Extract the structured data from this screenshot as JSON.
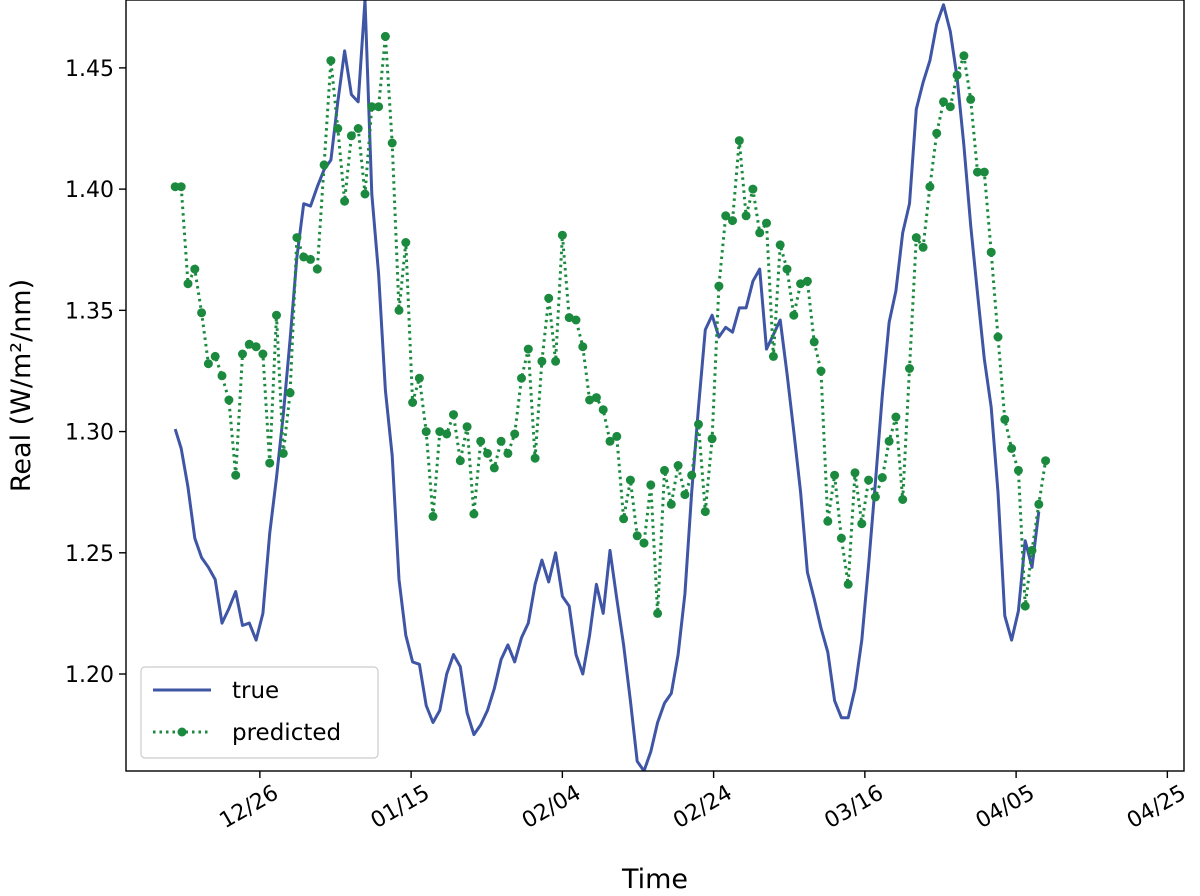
{
  "chart_data": {
    "type": "line",
    "xlabel": "Time",
    "ylabel": "Real (W/m²/nm)",
    "x_tick_labels": [
      "12/26",
      "01/15",
      "02/04",
      "02/24",
      "03/16",
      "04/05",
      "04/25"
    ],
    "x_tick_days": [
      0,
      20,
      40,
      60,
      80,
      100,
      120
    ],
    "x_range_days": [
      -17.7,
      122.2
    ],
    "y_ticks": [
      1.2,
      1.25,
      1.3,
      1.35,
      1.4,
      1.45
    ],
    "y_tick_labels": [
      "1.20",
      "1.25",
      "1.30",
      "1.35",
      "1.40",
      "1.45"
    ],
    "ylim": [
      1.16,
      1.478
    ],
    "grid": false,
    "legend_position": "lower-left",
    "colors": {
      "true": "#3f55a5",
      "predicted": "#1b8a3f"
    },
    "series": [
      {
        "name": "true",
        "style": "solid",
        "points": [
          [
            -11.2,
            1.301
          ],
          [
            -10.4,
            1.293
          ],
          [
            -9.5,
            1.277
          ],
          [
            -8.6,
            1.256
          ],
          [
            -7.7,
            1.248
          ],
          [
            -6.8,
            1.244
          ],
          [
            -5.9,
            1.239
          ],
          [
            -5.0,
            1.221
          ],
          [
            -4.1,
            1.227
          ],
          [
            -3.2,
            1.234
          ],
          [
            -2.3,
            1.22
          ],
          [
            -1.4,
            1.221
          ],
          [
            -0.5,
            1.214
          ],
          [
            0.4,
            1.225
          ],
          [
            1.3,
            1.258
          ],
          [
            2.2,
            1.281
          ],
          [
            3.1,
            1.307
          ],
          [
            4.0,
            1.338
          ],
          [
            4.9,
            1.372
          ],
          [
            5.8,
            1.394
          ],
          [
            6.7,
            1.393
          ],
          [
            7.6,
            1.401
          ],
          [
            8.5,
            1.408
          ],
          [
            9.4,
            1.412
          ],
          [
            10.3,
            1.436
          ],
          [
            11.2,
            1.457
          ],
          [
            12.1,
            1.439
          ],
          [
            13.0,
            1.436
          ],
          [
            13.9,
            1.478
          ],
          [
            14.8,
            1.398
          ],
          [
            15.7,
            1.365
          ],
          [
            16.6,
            1.317
          ],
          [
            17.5,
            1.29
          ],
          [
            18.4,
            1.239
          ],
          [
            19.3,
            1.216
          ],
          [
            20.2,
            1.205
          ],
          [
            21.1,
            1.204
          ],
          [
            22.0,
            1.187
          ],
          [
            22.9,
            1.18
          ],
          [
            23.8,
            1.185
          ],
          [
            24.7,
            1.2
          ],
          [
            25.6,
            1.208
          ],
          [
            26.5,
            1.203
          ],
          [
            27.4,
            1.184
          ],
          [
            28.3,
            1.175
          ],
          [
            29.2,
            1.179
          ],
          [
            30.1,
            1.185
          ],
          [
            31.0,
            1.194
          ],
          [
            31.9,
            1.206
          ],
          [
            32.8,
            1.212
          ],
          [
            33.7,
            1.205
          ],
          [
            34.6,
            1.215
          ],
          [
            35.5,
            1.221
          ],
          [
            36.4,
            1.237
          ],
          [
            37.3,
            1.247
          ],
          [
            38.2,
            1.238
          ],
          [
            39.1,
            1.25
          ],
          [
            40.0,
            1.232
          ],
          [
            40.9,
            1.228
          ],
          [
            41.8,
            1.208
          ],
          [
            42.7,
            1.2
          ],
          [
            43.6,
            1.216
          ],
          [
            44.5,
            1.237
          ],
          [
            45.4,
            1.225
          ],
          [
            46.3,
            1.251
          ],
          [
            47.2,
            1.231
          ],
          [
            48.1,
            1.212
          ],
          [
            49.0,
            1.189
          ],
          [
            49.9,
            1.164
          ],
          [
            50.8,
            1.16
          ],
          [
            51.7,
            1.168
          ],
          [
            52.6,
            1.18
          ],
          [
            53.5,
            1.188
          ],
          [
            54.4,
            1.192
          ],
          [
            55.3,
            1.208
          ],
          [
            56.2,
            1.233
          ],
          [
            57.1,
            1.275
          ],
          [
            58.0,
            1.31
          ],
          [
            58.9,
            1.342
          ],
          [
            59.8,
            1.348
          ],
          [
            60.7,
            1.339
          ],
          [
            61.6,
            1.343
          ],
          [
            62.5,
            1.341
          ],
          [
            63.4,
            1.351
          ],
          [
            64.3,
            1.351
          ],
          [
            65.2,
            1.362
          ],
          [
            66.1,
            1.367
          ],
          [
            67.0,
            1.334
          ],
          [
            67.9,
            1.34
          ],
          [
            68.8,
            1.346
          ],
          [
            69.7,
            1.324
          ],
          [
            70.6,
            1.3
          ],
          [
            71.5,
            1.275
          ],
          [
            72.4,
            1.242
          ],
          [
            73.3,
            1.231
          ],
          [
            74.2,
            1.219
          ],
          [
            75.1,
            1.209
          ],
          [
            76.0,
            1.189
          ],
          [
            76.9,
            1.182
          ],
          [
            77.8,
            1.182
          ],
          [
            78.7,
            1.194
          ],
          [
            79.6,
            1.214
          ],
          [
            80.5,
            1.245
          ],
          [
            81.4,
            1.279
          ],
          [
            82.3,
            1.315
          ],
          [
            83.2,
            1.345
          ],
          [
            84.1,
            1.358
          ],
          [
            85.0,
            1.382
          ],
          [
            85.9,
            1.394
          ],
          [
            86.8,
            1.433
          ],
          [
            87.7,
            1.444
          ],
          [
            88.6,
            1.453
          ],
          [
            89.5,
            1.468
          ],
          [
            90.4,
            1.476
          ],
          [
            91.3,
            1.465
          ],
          [
            92.2,
            1.446
          ],
          [
            93.1,
            1.418
          ],
          [
            94.0,
            1.385
          ],
          [
            94.9,
            1.357
          ],
          [
            95.8,
            1.33
          ],
          [
            96.7,
            1.31
          ],
          [
            97.6,
            1.275
          ],
          [
            98.5,
            1.224
          ],
          [
            99.4,
            1.214
          ],
          [
            100.3,
            1.226
          ],
          [
            101.2,
            1.255
          ],
          [
            102.1,
            1.244
          ],
          [
            103.0,
            1.267
          ]
        ]
      },
      {
        "name": "predicted",
        "style": "dotted-markers",
        "points": [
          [
            -11.2,
            1.401
          ],
          [
            -10.4,
            1.401
          ],
          [
            -9.5,
            1.361
          ],
          [
            -8.6,
            1.367
          ],
          [
            -7.7,
            1.349
          ],
          [
            -6.8,
            1.328
          ],
          [
            -5.9,
            1.331
          ],
          [
            -5.0,
            1.323
          ],
          [
            -4.1,
            1.313
          ],
          [
            -3.2,
            1.282
          ],
          [
            -2.3,
            1.332
          ],
          [
            -1.4,
            1.336
          ],
          [
            -0.5,
            1.335
          ],
          [
            0.4,
            1.332
          ],
          [
            1.3,
            1.287
          ],
          [
            2.2,
            1.348
          ],
          [
            3.1,
            1.291
          ],
          [
            4.0,
            1.316
          ],
          [
            4.9,
            1.38
          ],
          [
            5.8,
            1.372
          ],
          [
            6.7,
            1.371
          ],
          [
            7.6,
            1.367
          ],
          [
            8.5,
            1.41
          ],
          [
            9.4,
            1.453
          ],
          [
            10.3,
            1.425
          ],
          [
            11.2,
            1.395
          ],
          [
            12.1,
            1.422
          ],
          [
            13.0,
            1.425
          ],
          [
            13.9,
            1.398
          ],
          [
            14.8,
            1.434
          ],
          [
            15.7,
            1.434
          ],
          [
            16.6,
            1.463
          ],
          [
            17.5,
            1.419
          ],
          [
            18.4,
            1.35
          ],
          [
            19.3,
            1.378
          ],
          [
            20.2,
            1.312
          ],
          [
            21.1,
            1.322
          ],
          [
            22.0,
            1.3
          ],
          [
            22.9,
            1.265
          ],
          [
            23.8,
            1.3
          ],
          [
            24.7,
            1.299
          ],
          [
            25.6,
            1.307
          ],
          [
            26.5,
            1.288
          ],
          [
            27.4,
            1.302
          ],
          [
            28.3,
            1.266
          ],
          [
            29.2,
            1.296
          ],
          [
            30.1,
            1.291
          ],
          [
            31.0,
            1.285
          ],
          [
            31.9,
            1.296
          ],
          [
            32.8,
            1.291
          ],
          [
            33.7,
            1.299
          ],
          [
            34.6,
            1.322
          ],
          [
            35.5,
            1.334
          ],
          [
            36.4,
            1.289
          ],
          [
            37.3,
            1.329
          ],
          [
            38.2,
            1.355
          ],
          [
            39.1,
            1.329
          ],
          [
            40.0,
            1.381
          ],
          [
            40.9,
            1.347
          ],
          [
            41.8,
            1.346
          ],
          [
            42.7,
            1.335
          ],
          [
            43.6,
            1.313
          ],
          [
            44.5,
            1.314
          ],
          [
            45.4,
            1.309
          ],
          [
            46.3,
            1.296
          ],
          [
            47.2,
            1.298
          ],
          [
            48.1,
            1.264
          ],
          [
            49.0,
            1.28
          ],
          [
            49.9,
            1.257
          ],
          [
            50.8,
            1.254
          ],
          [
            51.7,
            1.278
          ],
          [
            52.6,
            1.225
          ],
          [
            53.5,
            1.284
          ],
          [
            54.4,
            1.27
          ],
          [
            55.3,
            1.286
          ],
          [
            56.2,
            1.274
          ],
          [
            57.1,
            1.282
          ],
          [
            58.0,
            1.303
          ],
          [
            58.9,
            1.267
          ],
          [
            59.8,
            1.297
          ],
          [
            60.7,
            1.36
          ],
          [
            61.6,
            1.389
          ],
          [
            62.5,
            1.387
          ],
          [
            63.4,
            1.42
          ],
          [
            64.3,
            1.389
          ],
          [
            65.2,
            1.4
          ],
          [
            66.1,
            1.382
          ],
          [
            67.0,
            1.386
          ],
          [
            67.9,
            1.331
          ],
          [
            68.8,
            1.377
          ],
          [
            69.7,
            1.367
          ],
          [
            70.6,
            1.348
          ],
          [
            71.5,
            1.361
          ],
          [
            72.4,
            1.362
          ],
          [
            73.3,
            1.337
          ],
          [
            74.2,
            1.325
          ],
          [
            75.1,
            1.263
          ],
          [
            76.0,
            1.282
          ],
          [
            76.9,
            1.256
          ],
          [
            77.8,
            1.237
          ],
          [
            78.7,
            1.283
          ],
          [
            79.6,
            1.262
          ],
          [
            80.5,
            1.28
          ],
          [
            81.4,
            1.273
          ],
          [
            82.3,
            1.281
          ],
          [
            83.2,
            1.296
          ],
          [
            84.1,
            1.306
          ],
          [
            85.0,
            1.272
          ],
          [
            85.9,
            1.326
          ],
          [
            86.8,
            1.38
          ],
          [
            87.7,
            1.376
          ],
          [
            88.6,
            1.401
          ],
          [
            89.5,
            1.423
          ],
          [
            90.4,
            1.436
          ],
          [
            91.3,
            1.434
          ],
          [
            92.2,
            1.447
          ],
          [
            93.1,
            1.455
          ],
          [
            94.0,
            1.437
          ],
          [
            94.9,
            1.407
          ],
          [
            95.8,
            1.407
          ],
          [
            96.7,
            1.374
          ],
          [
            97.6,
            1.339
          ],
          [
            98.5,
            1.305
          ],
          [
            99.4,
            1.293
          ],
          [
            100.3,
            1.284
          ],
          [
            101.2,
            1.228
          ],
          [
            102.1,
            1.251
          ],
          [
            103.0,
            1.27
          ],
          [
            103.9,
            1.288
          ]
        ]
      }
    ]
  }
}
